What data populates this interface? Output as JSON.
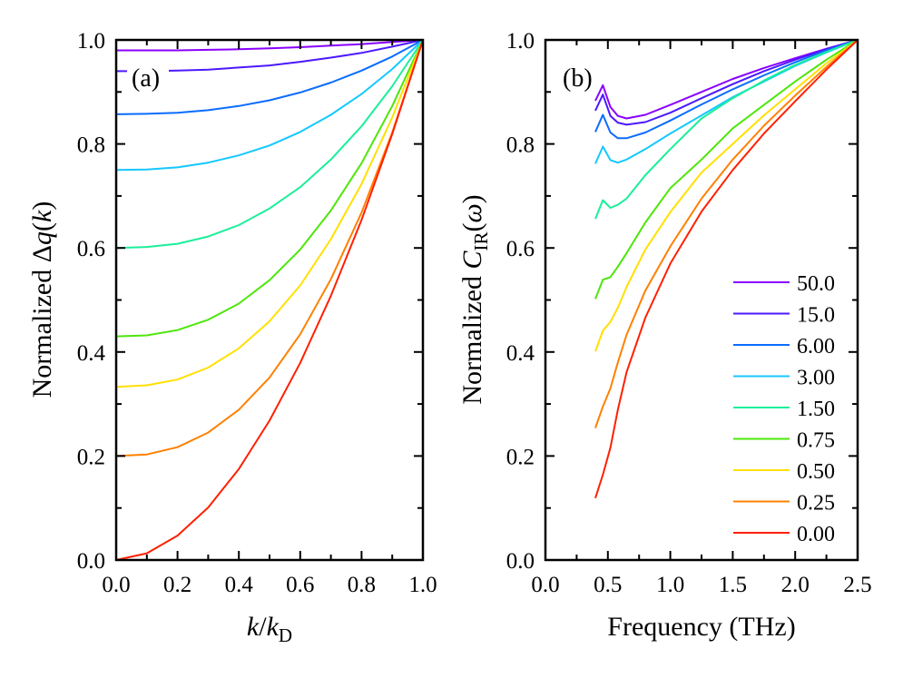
{
  "chart_data": [
    {
      "type": "line",
      "panel_label": "(a)",
      "xlabel": {
        "main": "k",
        "slash": "/",
        "sub_base": "k",
        "sub": "D"
      },
      "ylabel": {
        "prefix": "Normalized ",
        "delta": "Δ",
        "var": "q",
        "open": "(",
        "arg": "k",
        "close": ")"
      },
      "xlim": [
        0,
        1.0
      ],
      "ylim": [
        0,
        1.0
      ],
      "xticks": [
        "0.0",
        "0.2",
        "0.4",
        "0.6",
        "0.8",
        "1.0"
      ],
      "yticks": [
        "0.0",
        "0.2",
        "0.4",
        "0.6",
        "0.8",
        "1.0"
      ],
      "grid": false,
      "x": [
        0,
        0.1,
        0.2,
        0.3,
        0.4,
        0.5,
        0.6,
        0.7,
        0.8,
        0.9,
        1.0
      ],
      "series": [
        {
          "color": "#8a00ff",
          "values": [
            0.98,
            0.98,
            0.98,
            0.981,
            0.982,
            0.984,
            0.986,
            0.989,
            0.992,
            0.996,
            1.0
          ]
        },
        {
          "color": "#4b19ff",
          "values": [
            0.94,
            0.94,
            0.941,
            0.943,
            0.947,
            0.951,
            0.958,
            0.966,
            0.975,
            0.987,
            1.0
          ]
        },
        {
          "color": "#0a6cff",
          "values": [
            0.857,
            0.858,
            0.86,
            0.865,
            0.873,
            0.884,
            0.899,
            0.918,
            0.941,
            0.968,
            1.0
          ]
        },
        {
          "color": "#15c8ff",
          "values": [
            0.75,
            0.751,
            0.755,
            0.764,
            0.778,
            0.797,
            0.823,
            0.856,
            0.896,
            0.944,
            1.0
          ]
        },
        {
          "color": "#1bef9a",
          "values": [
            0.6,
            0.602,
            0.608,
            0.622,
            0.644,
            0.676,
            0.717,
            0.77,
            0.834,
            0.911,
            1.0
          ]
        },
        {
          "color": "#4ee60a",
          "values": [
            0.43,
            0.432,
            0.442,
            0.462,
            0.493,
            0.538,
            0.597,
            0.672,
            0.763,
            0.873,
            1.0
          ]
        },
        {
          "color": "#ffe000",
          "values": [
            0.333,
            0.336,
            0.347,
            0.37,
            0.407,
            0.459,
            0.528,
            0.617,
            0.723,
            0.851,
            1.0
          ]
        },
        {
          "color": "#ff8000",
          "values": [
            0.2,
            0.203,
            0.217,
            0.245,
            0.289,
            0.351,
            0.434,
            0.54,
            0.668,
            0.822,
            1.0
          ]
        },
        {
          "color": "#ff2000",
          "values": [
            0,
            0.013,
            0.047,
            0.101,
            0.175,
            0.268,
            0.379,
            0.508,
            0.654,
            0.819,
            1.0
          ]
        }
      ]
    },
    {
      "type": "line",
      "panel_label": "(b)",
      "xlabel": {
        "text": "Frequency (THz)"
      },
      "ylabel": {
        "prefix": "Normalized ",
        "var": "C",
        "sub": "IR",
        "open": "(",
        "arg": "ω",
        "close": ")"
      },
      "xlim": [
        0,
        2.5
      ],
      "ylim": [
        0,
        1.0
      ],
      "xticks": [
        "0.0",
        "0.5",
        "1.0",
        "1.5",
        "2.0",
        "2.5"
      ],
      "yticks": [
        "0.0",
        "0.2",
        "0.4",
        "0.6",
        "0.8",
        "1.0"
      ],
      "grid": false,
      "legend_position": "bottom-right",
      "x": [
        0.4,
        0.46,
        0.52,
        0.58,
        0.65,
        0.8,
        1.0,
        1.25,
        1.5,
        1.75,
        2.0,
        2.25,
        2.5
      ],
      "series": [
        {
          "name": "50.0",
          "color": "#8a00ff",
          "values": [
            0.883,
            0.913,
            0.871,
            0.854,
            0.849,
            0.856,
            0.875,
            0.9,
            0.925,
            0.946,
            0.965,
            0.983,
            1.0
          ]
        },
        {
          "name": "15.0",
          "color": "#4b19ff",
          "values": [
            0.864,
            0.895,
            0.854,
            0.841,
            0.837,
            0.842,
            0.86,
            0.888,
            0.915,
            0.94,
            0.962,
            0.982,
            1.0
          ]
        },
        {
          "name": "6.00",
          "color": "#0a6cff",
          "values": [
            0.823,
            0.856,
            0.822,
            0.811,
            0.811,
            0.822,
            0.845,
            0.876,
            0.905,
            0.932,
            0.957,
            0.98,
            1.0
          ]
        },
        {
          "name": "3.00",
          "color": "#15c8ff",
          "values": [
            0.762,
            0.795,
            0.769,
            0.764,
            0.77,
            0.79,
            0.82,
            0.855,
            0.89,
            0.92,
            0.95,
            0.976,
            1.0
          ]
        },
        {
          "name": "1.50",
          "color": "#1bef9a",
          "values": [
            0.656,
            0.692,
            0.677,
            0.683,
            0.695,
            0.74,
            0.79,
            0.849,
            0.888,
            0.922,
            0.952,
            0.977,
            1.0
          ]
        },
        {
          "name": "0.75",
          "color": "#4ee60a",
          "values": [
            0.502,
            0.539,
            0.544,
            0.564,
            0.59,
            0.649,
            0.715,
            0.77,
            0.83,
            0.875,
            0.92,
            0.962,
            1.0
          ]
        },
        {
          "name": "0.50",
          "color": "#ffe000",
          "values": [
            0.401,
            0.441,
            0.458,
            0.485,
            0.525,
            0.597,
            0.669,
            0.745,
            0.8,
            0.855,
            0.905,
            0.955,
            1.0
          ]
        },
        {
          "name": "0.25",
          "color": "#ff8000",
          "values": [
            0.254,
            0.295,
            0.33,
            0.38,
            0.433,
            0.518,
            0.603,
            0.695,
            0.77,
            0.835,
            0.893,
            0.948,
            1.0
          ]
        },
        {
          "name": "0.00",
          "color": "#ff2000",
          "values": [
            0.119,
            0.164,
            0.216,
            0.289,
            0.361,
            0.466,
            0.57,
            0.67,
            0.75,
            0.82,
            0.882,
            0.943,
            1.0
          ]
        }
      ]
    }
  ]
}
